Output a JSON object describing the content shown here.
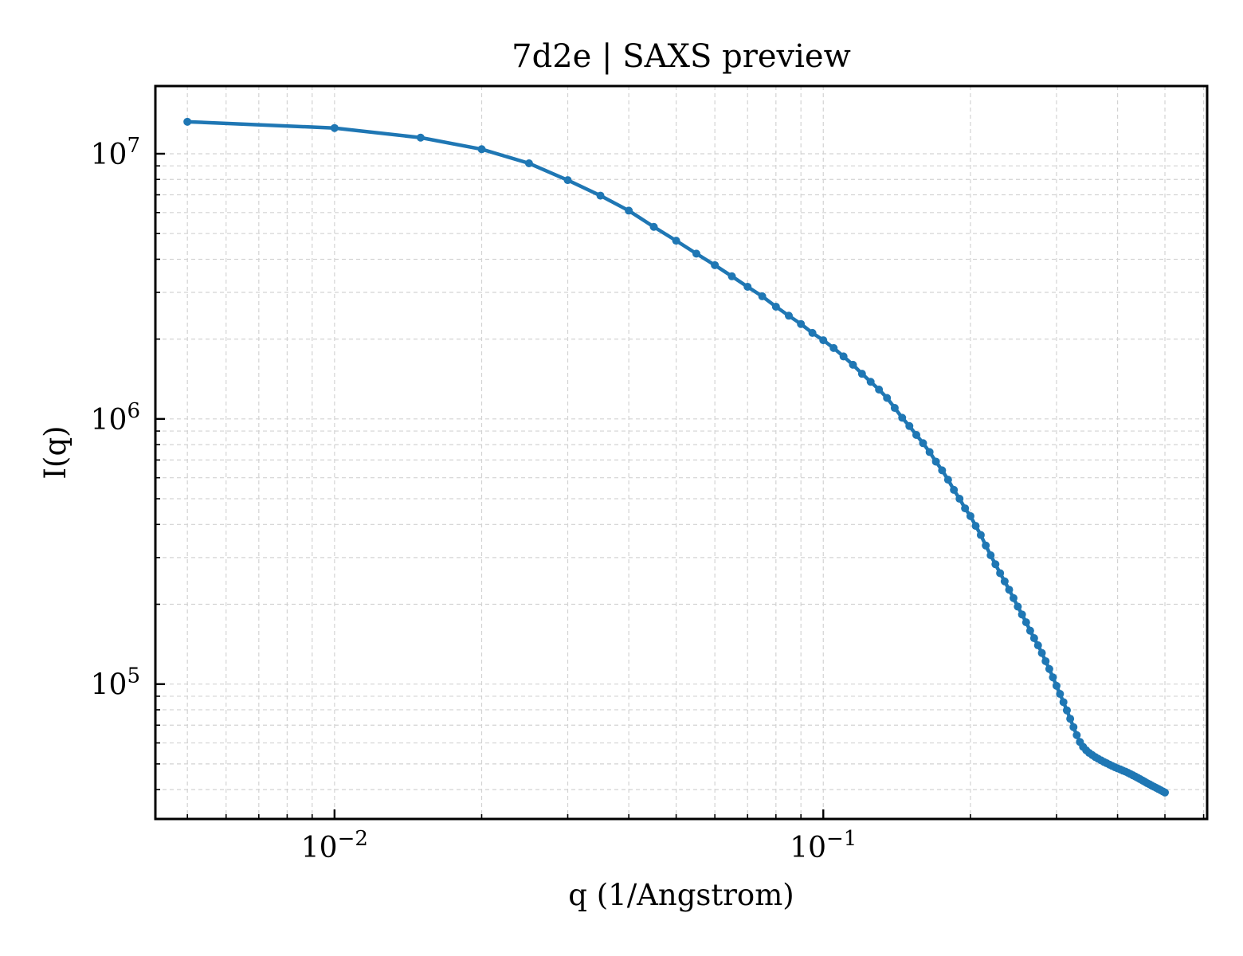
{
  "chart_data": {
    "type": "line",
    "title": "7d2e | SAXS preview",
    "xlabel": "q (1/Angstrom)",
    "ylabel": "I(q)",
    "xscale": "log",
    "yscale": "log",
    "xlim": [
      0.0043,
      0.61
    ],
    "ylim": [
      31000,
      18000000
    ],
    "grid": true,
    "legend": "none",
    "x_ticks": [
      {
        "value": 0.01,
        "base": "10",
        "exp": "−2"
      },
      {
        "value": 0.1,
        "base": "10",
        "exp": "−1"
      }
    ],
    "y_ticks": [
      {
        "value": 100000,
        "base": "10",
        "exp": "5"
      },
      {
        "value": 1000000,
        "base": "10",
        "exp": "6"
      },
      {
        "value": 10000000,
        "base": "10",
        "exp": "7"
      }
    ],
    "series": [
      {
        "color": "#1f77b4",
        "marker": "dot",
        "x": [
          0.005,
          0.01,
          0.015,
          0.02,
          0.025,
          0.03,
          0.035,
          0.04,
          0.045,
          0.05,
          0.055,
          0.06,
          0.065,
          0.07,
          0.075,
          0.08,
          0.085,
          0.09,
          0.095,
          0.1,
          0.105,
          0.11,
          0.115,
          0.12,
          0.125,
          0.13,
          0.135,
          0.14,
          0.145,
          0.15,
          0.155,
          0.16,
          0.165,
          0.17,
          0.175,
          0.18,
          0.185,
          0.19,
          0.195,
          0.2,
          0.205,
          0.21,
          0.215,
          0.22,
          0.225,
          0.23,
          0.235,
          0.24,
          0.245,
          0.25,
          0.255,
          0.26,
          0.265,
          0.27,
          0.275,
          0.28,
          0.285,
          0.29,
          0.295,
          0.3,
          0.305,
          0.31,
          0.315,
          0.32,
          0.325,
          0.33,
          0.335,
          0.34,
          0.345,
          0.35,
          0.355,
          0.36,
          0.365,
          0.37,
          0.375,
          0.38,
          0.385,
          0.39,
          0.395,
          0.4,
          0.405,
          0.41,
          0.415,
          0.42,
          0.425,
          0.43,
          0.435,
          0.44,
          0.445,
          0.45,
          0.455,
          0.46,
          0.465,
          0.47,
          0.475,
          0.48,
          0.485,
          0.49,
          0.495,
          0.5
        ],
        "y": [
          13200000,
          12500000,
          11500000,
          10400000,
          9200000,
          7950000,
          6950000,
          6100000,
          5300000,
          4700000,
          4200000,
          3800000,
          3450000,
          3150000,
          2900000,
          2650000,
          2450000,
          2280000,
          2110000,
          1980000,
          1850000,
          1720000,
          1600000,
          1480000,
          1380000,
          1290000,
          1200000,
          1100000,
          1010000,
          940000,
          870000,
          810000,
          750000,
          690000,
          640000,
          590000,
          540000,
          500000,
          460000,
          430000,
          395000,
          365000,
          333000,
          306000,
          283000,
          262000,
          244000,
          227000,
          211000,
          196000,
          183000,
          171000,
          159000,
          149000,
          140000,
          131000,
          122000,
          114000,
          106000,
          98500,
          91800,
          85500,
          79600,
          74000,
          68800,
          64200,
          60500,
          58000,
          56300,
          55000,
          54000,
          53100,
          52300,
          51600,
          50900,
          50300,
          49700,
          49100,
          48600,
          48100,
          47700,
          47200,
          46800,
          46300,
          45800,
          45300,
          44800,
          44300,
          43800,
          43300,
          42800,
          42300,
          41900,
          41400,
          41000,
          40600,
          40200,
          39800,
          39400,
          39000
        ]
      }
    ]
  }
}
